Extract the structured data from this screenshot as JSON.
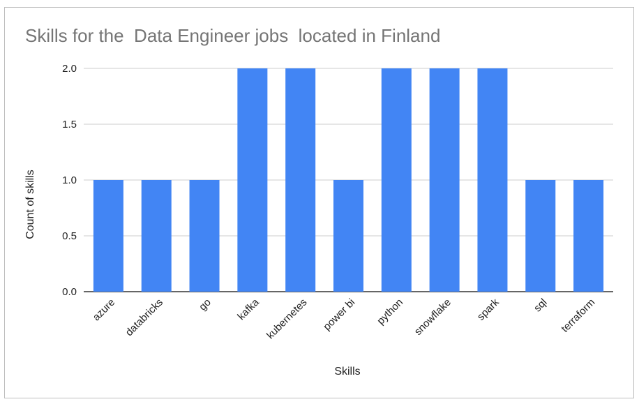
{
  "chart_data": {
    "type": "bar",
    "title": "Skills for the  Data Engineer jobs  located in Finland",
    "xlabel": "Skills",
    "ylabel": "Count of skills",
    "categories": [
      "azure",
      "databricks",
      "go",
      "kafka",
      "kubernetes",
      "power bi",
      "python",
      "snowflake",
      "spark",
      "sql",
      "terraform"
    ],
    "values": [
      1,
      1,
      1,
      2,
      2,
      1,
      2,
      2,
      2,
      1,
      1
    ],
    "ylim": [
      0,
      2
    ],
    "yticks": [
      "0.0",
      "0.5",
      "1.0",
      "1.5",
      "2.0"
    ],
    "bar_color": "#4285f4",
    "grid": true,
    "legend": "none"
  }
}
